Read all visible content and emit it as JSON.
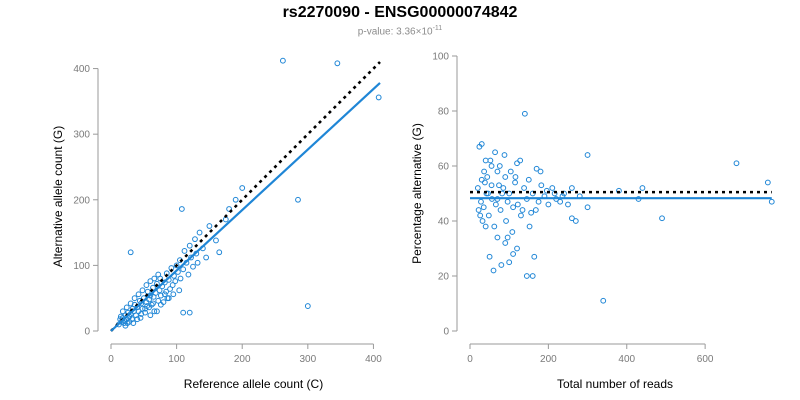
{
  "header": {
    "title": "rs2270090 - ENSG00000074842",
    "subtitle_prefix": "p-value: 3.36×10",
    "subtitle_exponent": "-11"
  },
  "chart_data": [
    {
      "type": "scatter",
      "xlabel": "Reference allele count (C)",
      "ylabel": "Alternative allele count (G)",
      "xlim": [
        0,
        410
      ],
      "ylim": [
        0,
        410
      ],
      "xticks": [
        0,
        100,
        200,
        300,
        400
      ],
      "yticks": [
        0,
        100,
        200,
        300,
        400
      ],
      "reference_line": {
        "x": [
          0,
          410
        ],
        "y": [
          0,
          410
        ],
        "style": "dotted",
        "color": "#000000"
      },
      "fit_line": {
        "x": [
          0,
          410
        ],
        "y": [
          0,
          378
        ],
        "color": "#1f86d6"
      },
      "points": [
        [
          12,
          10
        ],
        [
          14,
          18
        ],
        [
          15,
          22
        ],
        [
          16,
          14
        ],
        [
          18,
          20
        ],
        [
          20,
          16
        ],
        [
          22,
          24
        ],
        [
          24,
          18
        ],
        [
          25,
          12
        ],
        [
          26,
          28
        ],
        [
          28,
          22
        ],
        [
          30,
          26
        ],
        [
          32,
          18
        ],
        [
          33,
          34
        ],
        [
          35,
          30
        ],
        [
          36,
          40
        ],
        [
          38,
          24
        ],
        [
          40,
          36
        ],
        [
          42,
          30
        ],
        [
          44,
          46
        ],
        [
          45,
          20
        ],
        [
          46,
          42
        ],
        [
          48,
          34
        ],
        [
          50,
          50
        ],
        [
          52,
          28
        ],
        [
          54,
          44
        ],
        [
          55,
          38
        ],
        [
          56,
          60
        ],
        [
          58,
          48
        ],
        [
          60,
          54
        ],
        [
          62,
          40
        ],
        [
          64,
          66
        ],
        [
          65,
          52
        ],
        [
          66,
          30
        ],
        [
          68,
          58
        ],
        [
          70,
          72
        ],
        [
          72,
          46
        ],
        [
          74,
          62
        ],
        [
          75,
          80
        ],
        [
          76,
          54
        ],
        [
          78,
          68
        ],
        [
          80,
          44
        ],
        [
          82,
          74
        ],
        [
          84,
          60
        ],
        [
          85,
          88
        ],
        [
          86,
          50
        ],
        [
          88,
          78
        ],
        [
          90,
          64
        ],
        [
          92,
          96
        ],
        [
          94,
          70
        ],
        [
          95,
          56
        ],
        [
          96,
          84
        ],
        [
          98,
          76
        ],
        [
          100,
          100
        ],
        [
          102,
          90
        ],
        [
          104,
          62
        ],
        [
          105,
          108
        ],
        [
          106,
          80
        ],
        [
          110,
          94
        ],
        [
          112,
          122
        ],
        [
          115,
          104
        ],
        [
          118,
          86
        ],
        [
          120,
          130
        ],
        [
          122,
          112
        ],
        [
          125,
          98
        ],
        [
          128,
          140
        ],
        [
          130,
          118
        ],
        [
          132,
          104
        ],
        [
          135,
          150
        ],
        [
          140,
          126
        ],
        [
          145,
          112
        ],
        [
          150,
          160
        ],
        [
          160,
          138
        ],
        [
          165,
          120
        ],
        [
          175,
          170
        ],
        [
          190,
          200
        ],
        [
          200,
          218
        ],
        [
          180,
          186
        ],
        [
          108,
          186
        ],
        [
          285,
          200
        ],
        [
          262,
          412
        ],
        [
          345,
          408
        ],
        [
          408,
          356
        ],
        [
          300,
          38
        ],
        [
          30,
          120
        ],
        [
          110,
          28
        ],
        [
          120,
          28
        ],
        [
          60,
          24
        ],
        [
          18,
          30
        ],
        [
          22,
          8
        ],
        [
          28,
          14
        ],
        [
          34,
          12
        ],
        [
          40,
          18
        ],
        [
          46,
          26
        ],
        [
          52,
          34
        ],
        [
          58,
          36
        ],
        [
          64,
          42
        ],
        [
          70,
          30
        ],
        [
          76,
          40
        ],
        [
          82,
          56
        ],
        [
          88,
          50
        ],
        [
          24,
          36
        ],
        [
          30,
          42
        ],
        [
          36,
          50
        ],
        [
          42,
          56
        ],
        [
          48,
          62
        ],
        [
          54,
          70
        ],
        [
          60,
          76
        ],
        [
          66,
          80
        ],
        [
          72,
          86
        ],
        [
          20,
          12
        ],
        [
          26,
          20
        ]
      ]
    },
    {
      "type": "scatter",
      "xlabel": "Total number of reads",
      "ylabel": "Percentage alternative (G)",
      "xlim": [
        0,
        740
      ],
      "ylim": [
        0,
        100
      ],
      "xticks": [
        0,
        200,
        400,
        600
      ],
      "yticks": [
        0,
        20,
        40,
        60,
        80,
        100
      ],
      "reference_line": {
        "x": [
          0,
          770
        ],
        "y": [
          50.5,
          50.5
        ],
        "style": "dotted",
        "color": "#000000"
      },
      "fit_line": {
        "x": [
          0,
          770
        ],
        "y": [
          48.3,
          48.3
        ],
        "color": "#1f86d6"
      },
      "points": [
        [
          24,
          67
        ],
        [
          30,
          68
        ],
        [
          40,
          62
        ],
        [
          55,
          60
        ],
        [
          70,
          58
        ],
        [
          90,
          56
        ],
        [
          120,
          61
        ],
        [
          150,
          55
        ],
        [
          20,
          52
        ],
        [
          28,
          47
        ],
        [
          35,
          45
        ],
        [
          42,
          50
        ],
        [
          48,
          42
        ],
        [
          55,
          53
        ],
        [
          62,
          38
        ],
        [
          70,
          48
        ],
        [
          78,
          44
        ],
        [
          85,
          52
        ],
        [
          92,
          40
        ],
        [
          100,
          50
        ],
        [
          108,
          36
        ],
        [
          115,
          54
        ],
        [
          122,
          46
        ],
        [
          130,
          42
        ],
        [
          138,
          52
        ],
        [
          145,
          48
        ],
        [
          152,
          38
        ],
        [
          160,
          50
        ],
        [
          168,
          44
        ],
        [
          175,
          47
        ],
        [
          182,
          53
        ],
        [
          190,
          49
        ],
        [
          200,
          46
        ],
        [
          210,
          52
        ],
        [
          220,
          48
        ],
        [
          230,
          47
        ],
        [
          240,
          50
        ],
        [
          250,
          46
        ],
        [
          260,
          52
        ],
        [
          270,
          40
        ],
        [
          280,
          49
        ],
        [
          300,
          45
        ],
        [
          380,
          51
        ],
        [
          430,
          48
        ],
        [
          440,
          52
        ],
        [
          490,
          41
        ],
        [
          680,
          61
        ],
        [
          760,
          54
        ],
        [
          770,
          47
        ],
        [
          340,
          11
        ],
        [
          140,
          79
        ],
        [
          160,
          20
        ],
        [
          145,
          20
        ],
        [
          100,
          25
        ],
        [
          80,
          24
        ],
        [
          60,
          22
        ],
        [
          50,
          27
        ],
        [
          120,
          30
        ],
        [
          90,
          32
        ],
        [
          70,
          34
        ],
        [
          40,
          38
        ],
        [
          32,
          40
        ],
        [
          26,
          42
        ],
        [
          22,
          44
        ],
        [
          36,
          58
        ],
        [
          44,
          56
        ],
        [
          52,
          62
        ],
        [
          64,
          65
        ],
        [
          76,
          60
        ],
        [
          88,
          64
        ],
        [
          104,
          58
        ],
        [
          116,
          56
        ],
        [
          128,
          62
        ],
        [
          170,
          59
        ],
        [
          180,
          58
        ],
        [
          300,
          64
        ],
        [
          260,
          41
        ],
        [
          30,
          55
        ],
        [
          38,
          54
        ],
        [
          46,
          50
        ],
        [
          56,
          48
        ],
        [
          66,
          46
        ],
        [
          74,
          53
        ],
        [
          82,
          50
        ],
        [
          96,
          47
        ],
        [
          110,
          45
        ],
        [
          134,
          44
        ],
        [
          156,
          43
        ],
        [
          196,
          51
        ],
        [
          216,
          50
        ],
        [
          236,
          49
        ],
        [
          164,
          27
        ],
        [
          110,
          28
        ],
        [
          96,
          34
        ]
      ]
    }
  ]
}
